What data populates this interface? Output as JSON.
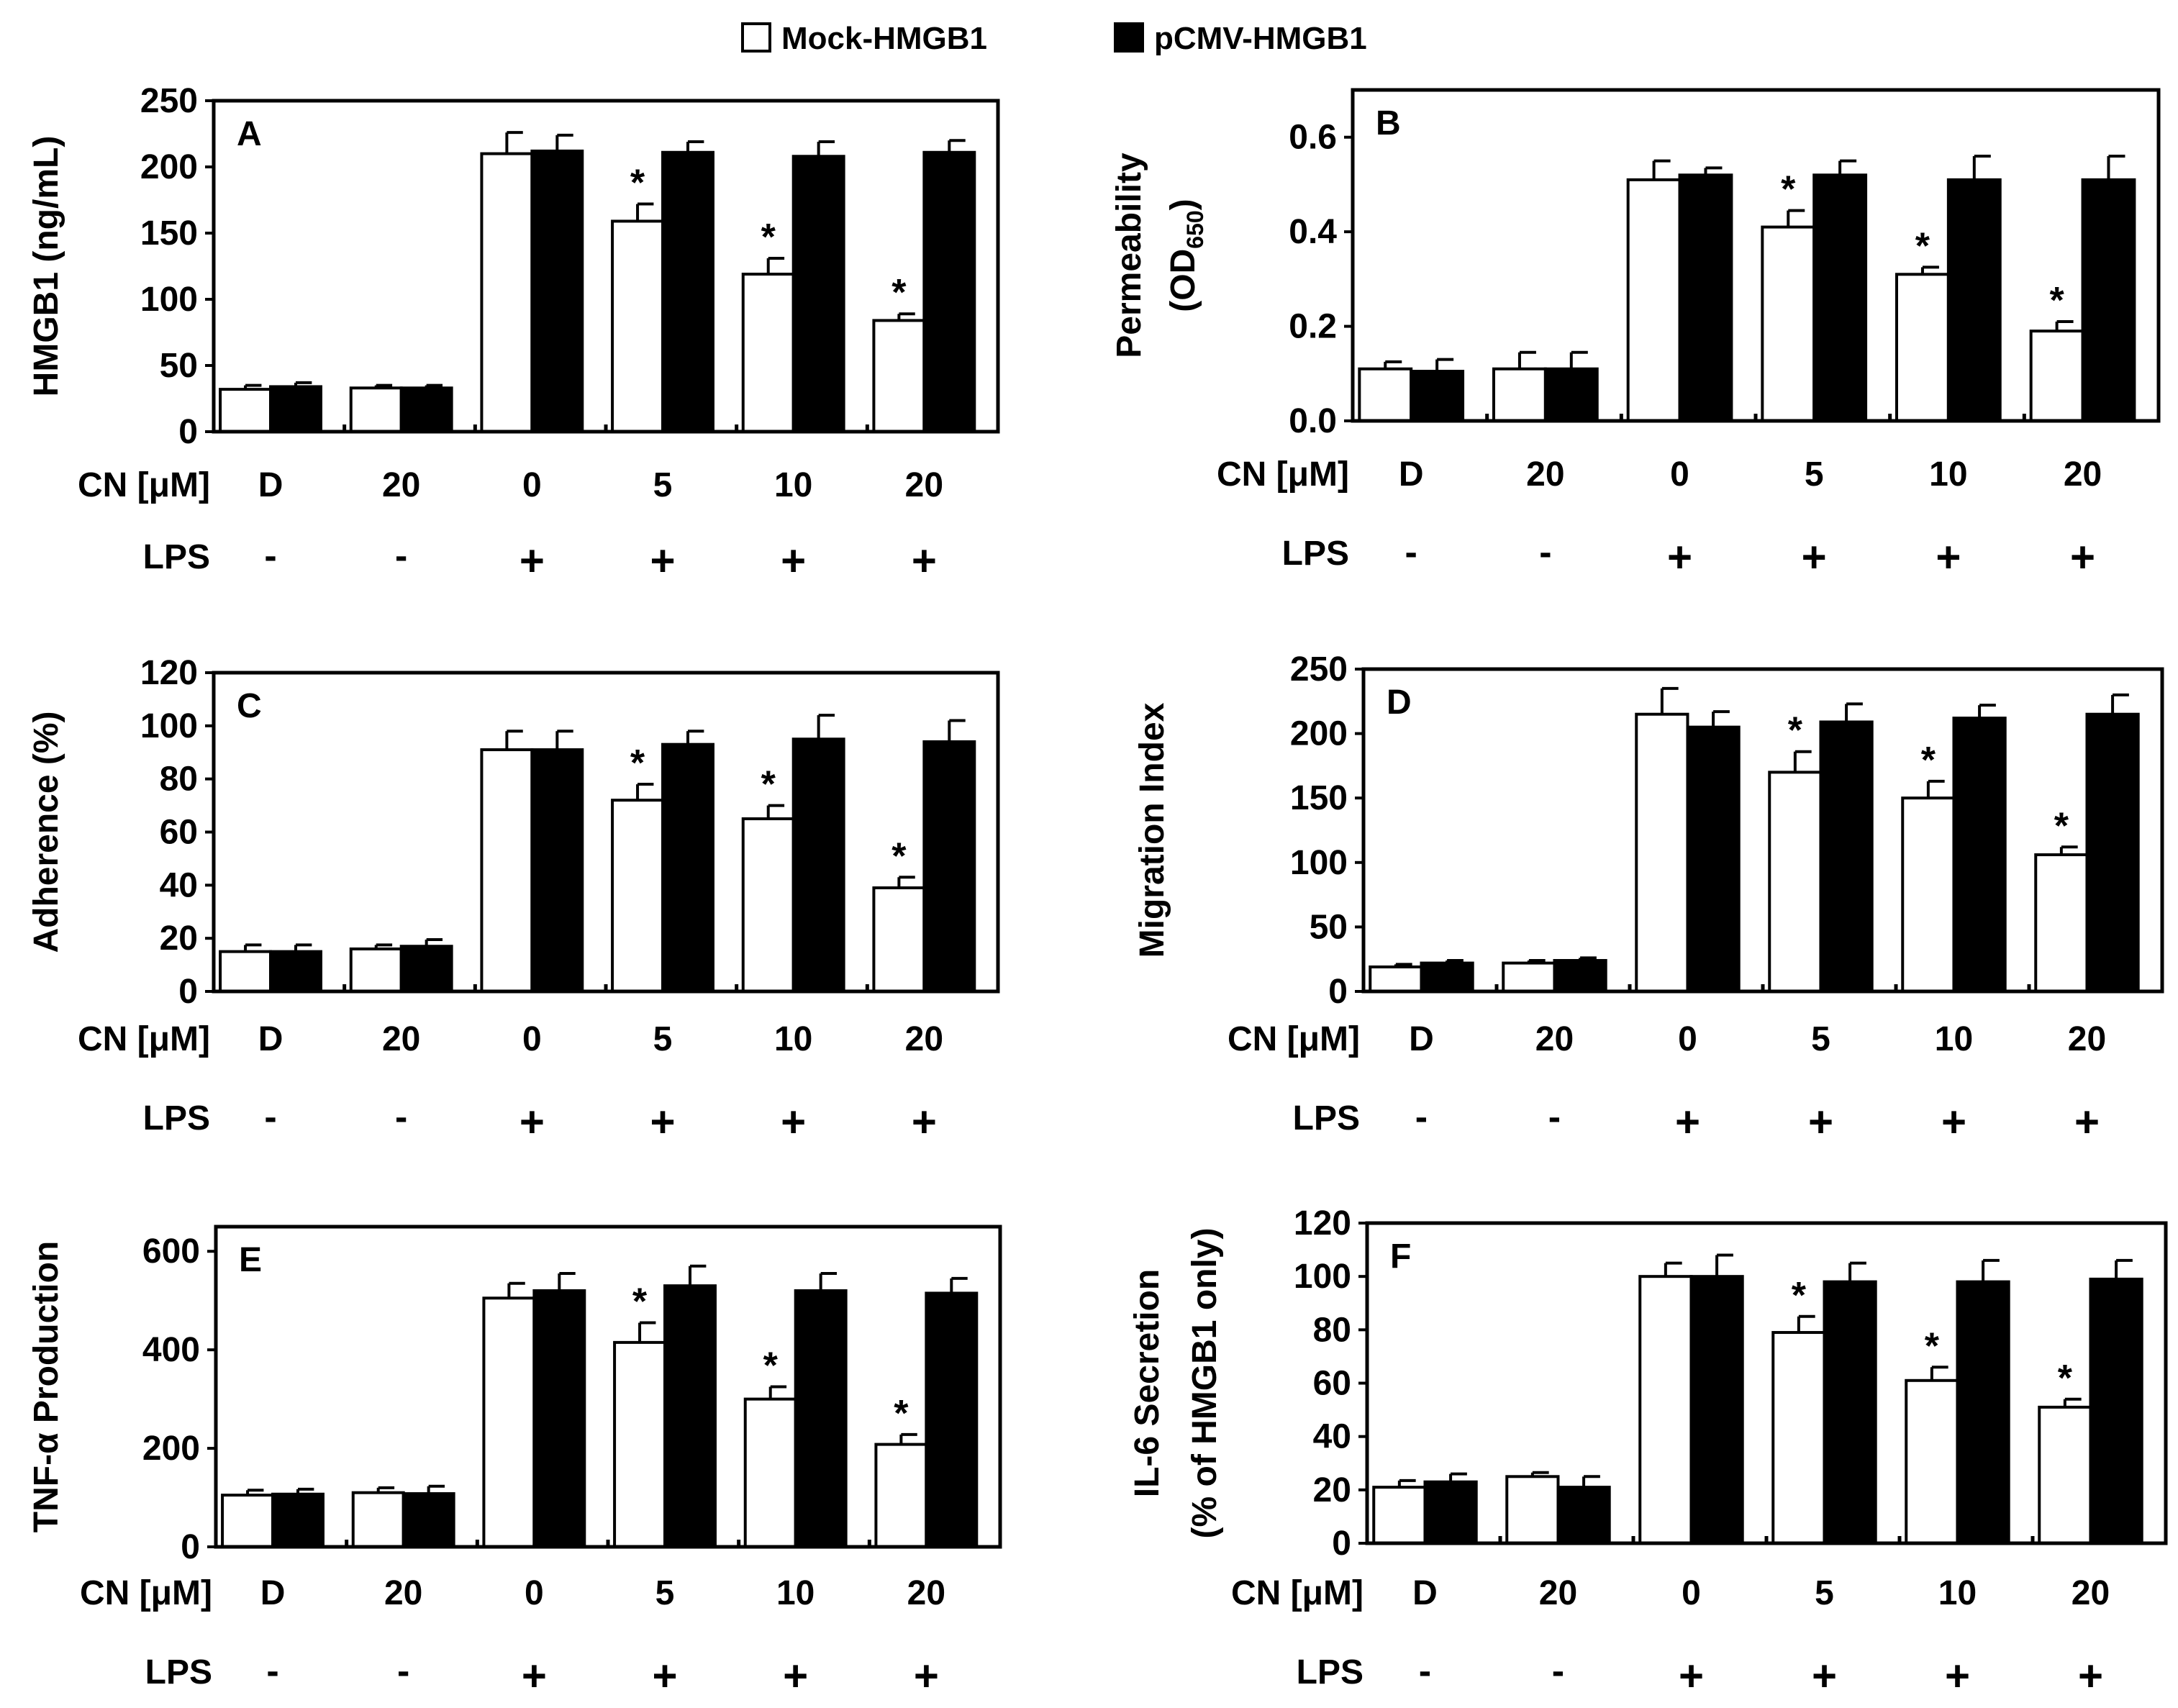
{
  "legend": {
    "position": "top-center",
    "items": [
      {
        "label": "Mock-HMGB1",
        "fill": "#ffffff"
      },
      {
        "label": "pCMV-HMGB1",
        "fill": "#000000"
      }
    ]
  },
  "colors": {
    "mock": "#ffffff",
    "pcmv": "#000000",
    "stroke": "#000000"
  },
  "cn_label": "CN [μM]",
  "lps_label": "LPS",
  "chart_data": [
    {
      "panel": "A",
      "type": "bar",
      "ylabel": "HMGB1 (ng/mL)",
      "ylim": [
        0,
        250
      ],
      "yticks": [
        "0",
        "50",
        "100",
        "150",
        "200",
        "250"
      ],
      "categories": [
        "D",
        "20",
        "0",
        "5",
        "10",
        "20"
      ],
      "lps": [
        "-",
        "-",
        "+",
        "+",
        "+",
        "+"
      ],
      "series": [
        {
          "name": "Mock-HMGB1",
          "values": [
            32,
            33,
            210,
            159,
            119,
            84
          ],
          "errors": [
            3,
            2,
            16,
            13,
            12,
            5
          ]
        },
        {
          "name": "pCMV-HMGB1",
          "values": [
            34,
            33,
            212,
            211,
            208,
            211
          ],
          "errors": [
            3,
            2,
            12,
            8,
            11,
            9
          ]
        }
      ],
      "significant": [
        "",
        "",
        "",
        "*",
        "*",
        "*"
      ]
    },
    {
      "panel": "B",
      "type": "bar",
      "ylabel": "Permeability",
      "ylabel2_main": "(OD",
      "ylabel2_sub": "650",
      "ylabel2_end": ")",
      "ylim": [
        0,
        0.7
      ],
      "yticks": [
        "0.0",
        "0.2",
        "0.4",
        "0.6"
      ],
      "categories": [
        "D",
        "20",
        "0",
        "5",
        "10",
        "20"
      ],
      "lps": [
        "-",
        "-",
        "+",
        "+",
        "+",
        "+"
      ],
      "series": [
        {
          "name": "Mock-HMGB1",
          "values": [
            0.11,
            0.11,
            0.51,
            0.41,
            0.31,
            0.19
          ],
          "errors": [
            0.015,
            0.035,
            0.04,
            0.035,
            0.015,
            0.02
          ]
        },
        {
          "name": "pCMV-HMGB1",
          "values": [
            0.105,
            0.11,
            0.52,
            0.52,
            0.51,
            0.51
          ],
          "errors": [
            0.025,
            0.035,
            0.015,
            0.03,
            0.05,
            0.05
          ]
        }
      ],
      "significant": [
        "",
        "",
        "",
        "*",
        "*",
        "*"
      ]
    },
    {
      "panel": "C",
      "type": "bar",
      "ylabel": "Adherence (%)",
      "ylim": [
        0,
        120
      ],
      "yticks": [
        "0",
        "20",
        "40",
        "60",
        "80",
        "100",
        "120"
      ],
      "categories": [
        "D",
        "20",
        "0",
        "5",
        "10",
        "20"
      ],
      "lps": [
        "-",
        "-",
        "+",
        "+",
        "+",
        "+"
      ],
      "series": [
        {
          "name": "Mock-HMGB1",
          "values": [
            15,
            16,
            91,
            72,
            65,
            39
          ],
          "errors": [
            2.5,
            1.5,
            7,
            6,
            5,
            4
          ]
        },
        {
          "name": "pCMV-HMGB1",
          "values": [
            15,
            17,
            91,
            93,
            95,
            94
          ],
          "errors": [
            2.5,
            2.5,
            7,
            5,
            9,
            8
          ]
        }
      ],
      "significant": [
        "",
        "",
        "",
        "*",
        "*",
        "*"
      ]
    },
    {
      "panel": "D",
      "type": "bar",
      "ylabel": "Migration Index",
      "ylim": [
        0,
        250
      ],
      "yticks": [
        "0",
        "50",
        "100",
        "150",
        "200",
        "250"
      ],
      "categories": [
        "D",
        "20",
        "0",
        "5",
        "10",
        "20"
      ],
      "lps": [
        "-",
        "-",
        "+",
        "+",
        "+",
        "+"
      ],
      "series": [
        {
          "name": "Mock-HMGB1",
          "values": [
            19,
            22,
            215,
            170,
            150,
            106
          ],
          "errors": [
            2,
            2,
            20,
            16,
            13,
            6
          ]
        },
        {
          "name": "pCMV-HMGB1",
          "values": [
            22,
            24,
            205,
            209,
            212,
            215
          ],
          "errors": [
            2,
            2,
            12,
            14,
            10,
            15
          ]
        }
      ],
      "significant": [
        "",
        "",
        "",
        "*",
        "*",
        "*"
      ]
    },
    {
      "panel": "E",
      "type": "bar",
      "ylabel": "TNF-α Production",
      "ylim": [
        0,
        650
      ],
      "yticks": [
        "0",
        "200",
        "400",
        "600"
      ],
      "categories": [
        "D",
        "20",
        "0",
        "5",
        "10",
        "20"
      ],
      "lps": [
        "-",
        "-",
        "+",
        "+",
        "+",
        "+"
      ],
      "series": [
        {
          "name": "Mock-HMGB1",
          "values": [
            105,
            110,
            505,
            415,
            300,
            208
          ],
          "errors": [
            10,
            10,
            30,
            40,
            25,
            20
          ]
        },
        {
          "name": "pCMV-HMGB1",
          "values": [
            107,
            108,
            520,
            530,
            520,
            515
          ],
          "errors": [
            10,
            15,
            35,
            40,
            35,
            30
          ]
        }
      ],
      "significant": [
        "",
        "",
        "",
        "*",
        "*",
        "*"
      ]
    },
    {
      "panel": "F",
      "type": "bar",
      "ylabel": "IL-6 Secretion",
      "ylabel2": "(% of HMGB1 only)",
      "ylim": [
        0,
        120
      ],
      "yticks": [
        "0",
        "20",
        "40",
        "60",
        "80",
        "100",
        "120"
      ],
      "categories": [
        "D",
        "20",
        "0",
        "5",
        "10",
        "20"
      ],
      "lps": [
        "-",
        "-",
        "+",
        "+",
        "+",
        "+"
      ],
      "series": [
        {
          "name": "Mock-HMGB1",
          "values": [
            21,
            25,
            100,
            79,
            61,
            51
          ],
          "errors": [
            2.5,
            1.5,
            5,
            6,
            5,
            3
          ]
        },
        {
          "name": "pCMV-HMGB1",
          "values": [
            23,
            21,
            100,
            98,
            98,
            99
          ],
          "errors": [
            3,
            4,
            8,
            7,
            8,
            7
          ]
        }
      ],
      "significant": [
        "",
        "",
        "",
        "*",
        "*",
        "*"
      ]
    }
  ]
}
